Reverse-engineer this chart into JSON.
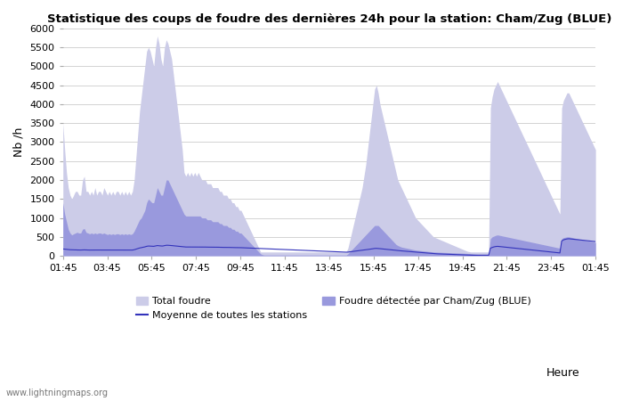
{
  "title": "Statistique des coups de foudre des dernières 24h pour la station: Cham/Zug (BLUE)",
  "xlabel": "Heure",
  "ylabel": "Nb /h",
  "ylim": [
    0,
    6000
  ],
  "yticks": [
    0,
    500,
    1000,
    1500,
    2000,
    2500,
    3000,
    3500,
    4000,
    4500,
    5000,
    5500,
    6000
  ],
  "x_labels": [
    "01:45",
    "03:45",
    "05:45",
    "07:45",
    "09:45",
    "11:45",
    "13:45",
    "15:45",
    "17:45",
    "19:45",
    "21:45",
    "23:45",
    "01:45"
  ],
  "color_total": "#cccce8",
  "color_local": "#9999dd",
  "color_mean": "#3333bb",
  "background_color": "#ffffff",
  "grid_color": "#cccccc",
  "watermark": "www.lightningmaps.org",
  "legend_total": "Total foudre",
  "legend_mean": "Moyenne de toutes les stations",
  "legend_local": "Foudre détectée par Cham/Zug (BLUE)",
  "total_foudre": [
    3500,
    2800,
    2200,
    1800,
    1600,
    1500,
    1600,
    1700,
    1700,
    1600,
    1600,
    2000,
    2100,
    1700,
    1700,
    1600,
    1700,
    1600,
    1800,
    1600,
    1700,
    1700,
    1600,
    1800,
    1700,
    1600,
    1700,
    1600,
    1700,
    1600,
    1700,
    1700,
    1600,
    1700,
    1600,
    1700,
    1600,
    1700,
    1600,
    1700,
    2000,
    2600,
    3200,
    3800,
    4200,
    4600,
    5000,
    5400,
    5500,
    5400,
    5200,
    5000,
    5500,
    5800,
    5600,
    5200,
    5000,
    5500,
    5700,
    5600,
    5400,
    5200,
    4800,
    4400,
    4000,
    3600,
    3200,
    2800,
    2200,
    2100,
    2200,
    2100,
    2200,
    2100,
    2200,
    2100,
    2200,
    2100,
    2000,
    2000,
    2000,
    1900,
    1900,
    1900,
    1800,
    1800,
    1800,
    1800,
    1700,
    1700,
    1600,
    1600,
    1600,
    1500,
    1500,
    1400,
    1400,
    1300,
    1300,
    1200,
    1200,
    1100,
    1000,
    900,
    800,
    700,
    600,
    500,
    400,
    300,
    200,
    100,
    100,
    100,
    100,
    100,
    100,
    100,
    100,
    100,
    100,
    100,
    100,
    100,
    100,
    100,
    100,
    100,
    100,
    100,
    100,
    100,
    100,
    100,
    100,
    100,
    100,
    100,
    100,
    100,
    100,
    100,
    100,
    100,
    100,
    100,
    100,
    100,
    100,
    100,
    100,
    100,
    100,
    100,
    100,
    100,
    100,
    100,
    100,
    100,
    200,
    400,
    600,
    800,
    1000,
    1200,
    1400,
    1600,
    1800,
    2100,
    2400,
    2800,
    3200,
    3600,
    4000,
    4400,
    4500,
    4300,
    4000,
    3800,
    3600,
    3400,
    3200,
    3000,
    2800,
    2600,
    2400,
    2200,
    2000,
    1900,
    1800,
    1700,
    1600,
    1500,
    1400,
    1300,
    1200,
    1100,
    1000,
    950,
    900,
    850,
    800,
    750,
    700,
    650,
    600,
    550,
    500,
    480,
    460,
    440,
    420,
    400,
    380,
    360,
    340,
    320,
    300,
    280,
    260,
    240,
    220,
    200,
    180,
    160,
    140,
    120,
    110,
    100,
    100,
    100,
    100,
    100,
    100,
    100,
    100,
    100,
    100,
    100,
    3900,
    4200,
    4400,
    4500,
    4600,
    4500,
    4400,
    4300,
    4200,
    4100,
    4000,
    3900,
    3800,
    3700,
    3600,
    3500,
    3400,
    3300,
    3200,
    3100,
    3000,
    2900,
    2800,
    2700,
    2600,
    2500,
    2400,
    2300,
    2200,
    2100,
    2000,
    1900,
    1800,
    1700,
    1600,
    1500,
    1400,
    1300,
    1200,
    1100,
    3900,
    4100,
    4200,
    4300,
    4300,
    4200,
    4100,
    4000,
    3900,
    3800,
    3700,
    3600,
    3500,
    3400,
    3300,
    3200,
    3100,
    3000,
    2900,
    2800
  ],
  "local_foudre": [
    1400,
    1100,
    900,
    700,
    600,
    550,
    580,
    600,
    620,
    600,
    600,
    700,
    720,
    620,
    600,
    580,
    600,
    580,
    600,
    580,
    600,
    600,
    580,
    600,
    580,
    560,
    580,
    560,
    580,
    560,
    580,
    580,
    560,
    580,
    560,
    580,
    560,
    580,
    560,
    580,
    650,
    750,
    850,
    950,
    1000,
    1100,
    1200,
    1400,
    1500,
    1450,
    1400,
    1400,
    1600,
    1800,
    1700,
    1600,
    1600,
    1800,
    2000,
    2000,
    1900,
    1800,
    1700,
    1600,
    1500,
    1400,
    1300,
    1200,
    1100,
    1050,
    1050,
    1050,
    1050,
    1050,
    1050,
    1050,
    1050,
    1050,
    1000,
    1000,
    1000,
    950,
    950,
    950,
    900,
    900,
    900,
    900,
    850,
    850,
    800,
    800,
    800,
    750,
    750,
    700,
    700,
    650,
    650,
    600,
    600,
    550,
    500,
    450,
    400,
    350,
    300,
    250,
    200,
    150,
    100,
    50,
    30,
    20,
    20,
    20,
    20,
    20,
    20,
    20,
    20,
    20,
    20,
    20,
    20,
    20,
    20,
    20,
    20,
    20,
    20,
    20,
    20,
    20,
    20,
    20,
    20,
    20,
    20,
    20,
    20,
    20,
    20,
    20,
    20,
    20,
    20,
    20,
    20,
    20,
    20,
    20,
    20,
    20,
    20,
    20,
    20,
    20,
    20,
    20,
    50,
    100,
    150,
    200,
    250,
    300,
    350,
    400,
    450,
    500,
    550,
    600,
    650,
    700,
    750,
    800,
    800,
    800,
    750,
    700,
    650,
    600,
    550,
    500,
    450,
    400,
    350,
    300,
    270,
    250,
    230,
    220,
    210,
    200,
    190,
    180,
    170,
    160,
    150,
    145,
    140,
    135,
    130,
    125,
    120,
    115,
    110,
    105,
    100,
    98,
    96,
    94,
    92,
    90,
    88,
    86,
    84,
    82,
    80,
    78,
    76,
    74,
    72,
    70,
    68,
    66,
    64,
    62,
    60,
    58,
    56,
    54,
    52,
    50,
    50,
    50,
    50,
    50,
    50,
    50,
    450,
    500,
    520,
    540,
    550,
    540,
    530,
    520,
    510,
    500,
    490,
    480,
    470,
    460,
    450,
    440,
    430,
    420,
    410,
    400,
    390,
    380,
    370,
    360,
    350,
    340,
    330,
    320,
    310,
    300,
    290,
    280,
    270,
    260,
    250,
    240,
    230,
    220,
    210,
    200,
    450,
    480,
    490,
    500,
    500,
    490,
    480,
    470,
    460,
    450,
    440,
    430,
    420,
    410,
    400,
    390,
    380,
    370,
    360,
    350
  ],
  "mean_line": [
    180,
    175,
    170,
    165,
    160,
    158,
    156,
    155,
    154,
    153,
    152,
    155,
    156,
    154,
    152,
    151,
    152,
    151,
    152,
    151,
    152,
    152,
    151,
    152,
    151,
    150,
    151,
    150,
    151,
    150,
    151,
    151,
    150,
    151,
    150,
    151,
    150,
    151,
    150,
    151,
    160,
    175,
    190,
    205,
    215,
    225,
    235,
    250,
    258,
    255,
    252,
    250,
    260,
    270,
    265,
    260,
    258,
    268,
    278,
    278,
    275,
    270,
    265,
    260,
    255,
    250,
    245,
    240,
    235,
    232,
    232,
    232,
    232,
    232,
    232,
    232,
    232,
    232,
    230,
    230,
    230,
    228,
    228,
    228,
    226,
    226,
    226,
    226,
    224,
    224,
    222,
    222,
    222,
    220,
    220,
    218,
    218,
    216,
    216,
    214,
    214,
    212,
    210,
    208,
    206,
    204,
    202,
    200,
    198,
    196,
    194,
    192,
    190,
    188,
    186,
    184,
    182,
    180,
    178,
    176,
    174,
    172,
    170,
    168,
    166,
    164,
    162,
    160,
    158,
    156,
    154,
    152,
    150,
    148,
    146,
    144,
    142,
    140,
    138,
    136,
    134,
    132,
    130,
    128,
    126,
    124,
    122,
    120,
    118,
    116,
    114,
    112,
    110,
    108,
    106,
    104,
    102,
    100,
    98,
    96,
    98,
    104,
    110,
    116,
    122,
    128,
    134,
    140,
    146,
    152,
    158,
    165,
    172,
    179,
    186,
    193,
    196,
    193,
    188,
    183,
    178,
    173,
    168,
    163,
    158,
    153,
    148,
    143,
    138,
    134,
    130,
    126,
    122,
    118,
    114,
    110,
    106,
    102,
    98,
    94,
    90,
    86,
    82,
    78,
    74,
    70,
    66,
    62,
    58,
    54,
    52,
    50,
    48,
    46,
    44,
    42,
    40,
    38,
    36,
    34,
    32,
    30,
    28,
    26,
    24,
    22,
    20,
    18,
    16,
    14,
    13,
    12,
    11,
    10,
    10,
    10,
    10,
    10,
    10,
    10,
    200,
    220,
    235,
    245,
    250,
    245,
    240,
    235,
    230,
    225,
    220,
    215,
    210,
    205,
    200,
    195,
    190,
    185,
    180,
    175,
    170,
    165,
    160,
    155,
    150,
    145,
    140,
    135,
    130,
    125,
    120,
    115,
    110,
    105,
    100,
    95,
    90,
    85,
    80,
    75,
    390,
    420,
    435,
    445,
    450,
    445,
    440,
    435,
    430,
    425,
    420,
    415,
    410,
    405,
    400,
    395,
    390,
    385,
    380,
    375
  ]
}
